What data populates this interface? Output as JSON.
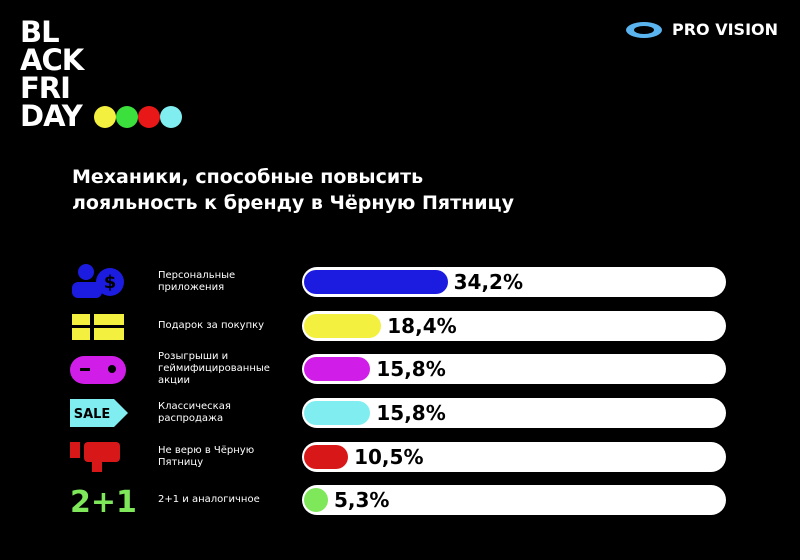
{
  "logo": [
    "BL",
    "ACK",
    "FRI",
    "DAY"
  ],
  "brand": "PRO VISION",
  "icons": {
    "sale": "SALE",
    "two_plus_one": "2+1"
  },
  "chart_data": {
    "type": "bar",
    "orientation": "horizontal",
    "title": "Механики, способные повысить лояльность к бренду в Чёрную Пятницу",
    "categories": [
      "Персональные приложения",
      "Подарок за покупку",
      "Розыгрыши и геймифицированные акции",
      "Классическая распродажа",
      "Не верю в Чёрную Пятницу",
      "2+1 и аналогичное"
    ],
    "values": [
      34.2,
      18.4,
      15.8,
      15.8,
      10.5,
      5.3
    ],
    "value_labels": [
      "34,2%",
      "18,4%",
      "15,8%",
      "15,8%",
      "10,5%",
      "5,3%"
    ],
    "colors": [
      "#1c1ce0",
      "#f4f040",
      "#d01ee8",
      "#80eef0",
      "#d81818",
      "#7ee85a"
    ],
    "xlim": [
      0,
      100
    ]
  }
}
